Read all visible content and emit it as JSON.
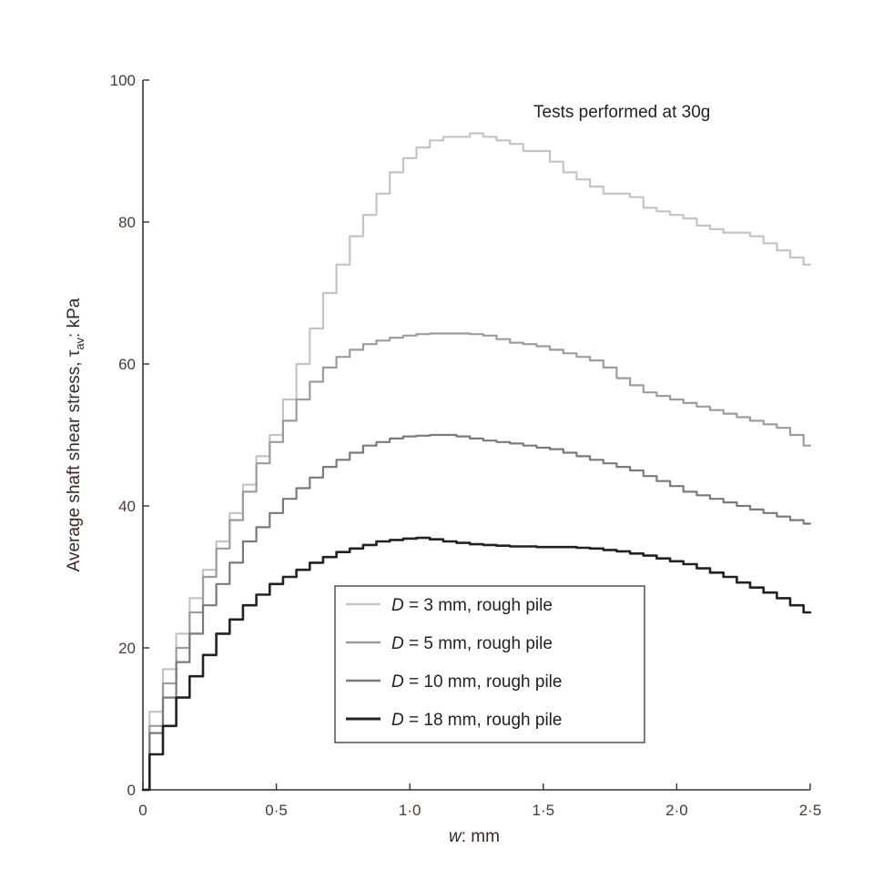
{
  "chart_data": {
    "type": "line",
    "annotation": "Tests performed at 30g",
    "xlabel_var": "w",
    "xlabel_rest": ": mm",
    "ylabel_main": "Average shaft shear stress, τ",
    "ylabel_sub": "av",
    "ylabel_rest": ": kPa",
    "xlim": [
      0,
      2.5
    ],
    "ylim": [
      0,
      100
    ],
    "xticks": [
      {
        "value": 0,
        "label": "0"
      },
      {
        "value": 0.5,
        "label": "0·5"
      },
      {
        "value": 1.0,
        "label": "1·0"
      },
      {
        "value": 1.5,
        "label": "1·5"
      },
      {
        "value": 2.0,
        "label": "2·0"
      },
      {
        "value": 2.5,
        "label": "2·5"
      }
    ],
    "yticks": [
      {
        "value": 0,
        "label": "0"
      },
      {
        "value": 20,
        "label": "20"
      },
      {
        "value": 40,
        "label": "40"
      },
      {
        "value": 60,
        "label": "60"
      },
      {
        "value": 80,
        "label": "80"
      },
      {
        "value": 100,
        "label": "100"
      }
    ],
    "legend_position": "bottom-center",
    "series": [
      {
        "legend_var": "D",
        "legend_rest": " = 3 mm, rough pile",
        "color": "#c4c4c4",
        "x": [
          0,
          0.05,
          0.1,
          0.15,
          0.2,
          0.25,
          0.3,
          0.35,
          0.4,
          0.45,
          0.5,
          0.55,
          0.6,
          0.65,
          0.7,
          0.75,
          0.8,
          0.85,
          0.9,
          0.95,
          1.0,
          1.05,
          1.1,
          1.15,
          1.2,
          1.25,
          1.3,
          1.35,
          1.4,
          1.45,
          1.5,
          1.55,
          1.6,
          1.65,
          1.7,
          1.75,
          1.8,
          1.85,
          1.9,
          1.95,
          2.0,
          2.05,
          2.1,
          2.15,
          2.2,
          2.25,
          2.3,
          2.35,
          2.4,
          2.45,
          2.5
        ],
        "y": [
          0,
          11,
          17,
          22,
          27,
          31,
          35,
          39,
          43,
          47,
          50,
          55,
          60,
          65,
          70,
          74,
          78,
          81,
          84,
          87,
          89,
          90.5,
          91.5,
          92,
          92,
          92.5,
          92,
          91.5,
          91,
          90,
          90,
          88.5,
          87,
          86,
          85,
          84,
          84,
          83.5,
          82,
          81.5,
          81,
          80.5,
          79.5,
          79,
          78.5,
          78.5,
          78,
          77,
          76,
          75,
          74
        ]
      },
      {
        "legend_var": "D",
        "legend_rest": " = 5 mm, rough pile",
        "color": "#9c9c9c",
        "x": [
          0,
          0.05,
          0.1,
          0.15,
          0.2,
          0.25,
          0.3,
          0.35,
          0.4,
          0.45,
          0.5,
          0.55,
          0.6,
          0.65,
          0.7,
          0.75,
          0.8,
          0.85,
          0.9,
          0.95,
          1.0,
          1.05,
          1.1,
          1.15,
          1.2,
          1.25,
          1.3,
          1.35,
          1.4,
          1.45,
          1.5,
          1.55,
          1.6,
          1.65,
          1.7,
          1.75,
          1.8,
          1.85,
          1.9,
          1.95,
          2.0,
          2.05,
          2.1,
          2.15,
          2.2,
          2.25,
          2.3,
          2.35,
          2.4,
          2.45,
          2.5
        ],
        "y": [
          0,
          9,
          15,
          20,
          25,
          30,
          34,
          38,
          42,
          46,
          49,
          52,
          55,
          57.5,
          59.5,
          61,
          62,
          62.8,
          63.3,
          63.7,
          64,
          64.2,
          64.3,
          64.3,
          64.3,
          64.2,
          64,
          63.5,
          63,
          62.8,
          62.5,
          62,
          61.5,
          61,
          60.5,
          59.5,
          58,
          57,
          56,
          55.5,
          55,
          54.5,
          54,
          53.5,
          53,
          52.5,
          52,
          51.5,
          51,
          50,
          48.5
        ]
      },
      {
        "legend_var": "D",
        "legend_rest": " = 10 mm, rough pile",
        "color": "#7a7a7a",
        "x": [
          0,
          0.05,
          0.1,
          0.15,
          0.2,
          0.25,
          0.3,
          0.35,
          0.4,
          0.45,
          0.5,
          0.55,
          0.6,
          0.65,
          0.7,
          0.75,
          0.8,
          0.85,
          0.9,
          0.95,
          1.0,
          1.05,
          1.1,
          1.15,
          1.2,
          1.25,
          1.3,
          1.35,
          1.4,
          1.45,
          1.5,
          1.55,
          1.6,
          1.65,
          1.7,
          1.75,
          1.8,
          1.85,
          1.9,
          1.95,
          2.0,
          2.05,
          2.1,
          2.15,
          2.2,
          2.25,
          2.3,
          2.35,
          2.4,
          2.45,
          2.5
        ],
        "y": [
          0,
          8,
          13,
          18,
          22,
          26,
          29,
          32,
          35,
          37,
          39,
          41,
          42.5,
          44,
          45.5,
          46.5,
          47.5,
          48.5,
          49,
          49.5,
          49.8,
          49.9,
          50,
          50,
          49.8,
          49.5,
          49.2,
          49,
          48.8,
          48.5,
          48.2,
          48,
          47.5,
          47,
          46.5,
          46,
          45.5,
          45,
          44.2,
          43.5,
          42.8,
          42,
          41.5,
          41,
          40.5,
          40,
          39.5,
          39,
          38.5,
          38,
          37.5
        ]
      },
      {
        "legend_var": "D",
        "legend_rest": " = 18 mm, rough pile",
        "color": "#222222",
        "x": [
          0,
          0.05,
          0.1,
          0.15,
          0.2,
          0.25,
          0.3,
          0.35,
          0.4,
          0.45,
          0.5,
          0.55,
          0.6,
          0.65,
          0.7,
          0.75,
          0.8,
          0.85,
          0.9,
          0.95,
          1.0,
          1.05,
          1.1,
          1.15,
          1.2,
          1.25,
          1.3,
          1.35,
          1.4,
          1.45,
          1.5,
          1.55,
          1.6,
          1.65,
          1.7,
          1.75,
          1.8,
          1.85,
          1.9,
          1.95,
          2.0,
          2.05,
          2.1,
          2.15,
          2.2,
          2.25,
          2.3,
          2.35,
          2.4,
          2.45,
          2.5
        ],
        "y": [
          0,
          5,
          9,
          13,
          16,
          19,
          22,
          24,
          26,
          27.5,
          29,
          30,
          31,
          32,
          32.8,
          33.5,
          34,
          34.5,
          35,
          35.2,
          35.4,
          35.5,
          35.3,
          35,
          34.8,
          34.6,
          34.5,
          34.4,
          34.3,
          34.3,
          34.2,
          34.2,
          34.2,
          34.1,
          34,
          33.8,
          33.6,
          33.3,
          33,
          32.6,
          32.2,
          31.8,
          31.2,
          30.6,
          30,
          29.2,
          28.5,
          27.8,
          27,
          26,
          25
        ]
      }
    ]
  }
}
